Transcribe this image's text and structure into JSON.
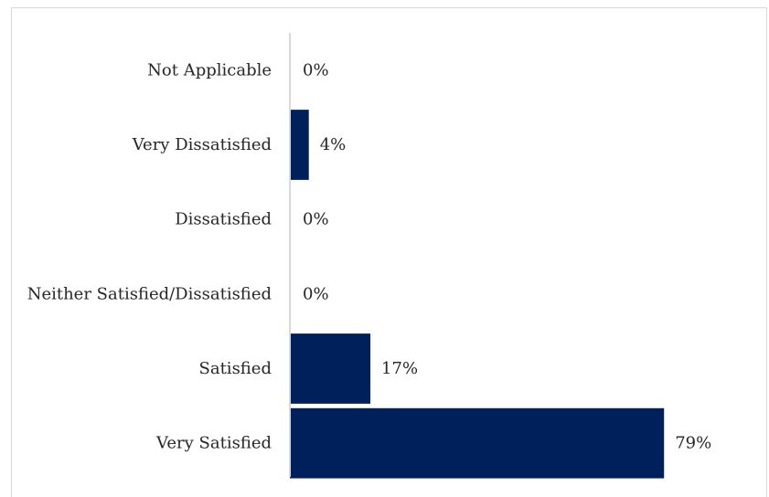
{
  "chart_data": {
    "type": "bar",
    "orientation": "horizontal",
    "categories": [
      "Not Applicable",
      "Very Dissatisfied",
      "Dissatisfied",
      "Neither Satisfied/Dissatisfied",
      "Satisfied",
      "Very Satisfied"
    ],
    "values": [
      0,
      4,
      0,
      0,
      17,
      79
    ],
    "value_labels": [
      "0%",
      "4%",
      "0%",
      "0%",
      "17%",
      "79%"
    ],
    "xlim": [
      0,
      100
    ],
    "grid": false,
    "legend": "none",
    "bar_color": "#00205b",
    "axis_color": "#d9d9d9"
  }
}
